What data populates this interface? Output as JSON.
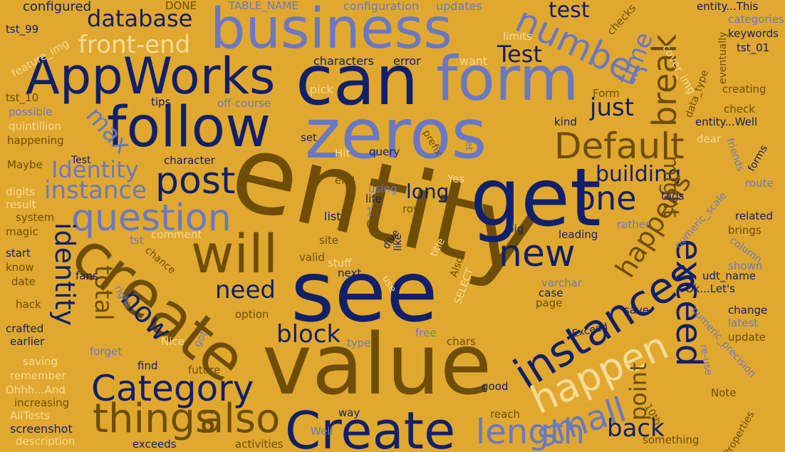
{
  "words": [
    "entity",
    "value",
    "see",
    "zeros",
    "get",
    "can",
    "business",
    "form",
    "follow",
    "AppWorks",
    "create",
    "Create",
    "will",
    "instances",
    "exceed",
    "number",
    "things",
    "also",
    "Category",
    "length",
    "question",
    "happen",
    "Default",
    "break",
    "new",
    "post",
    "identity",
    "small",
    "one",
    "instance",
    "database",
    "front-end",
    "Identity",
    "building",
    "happens",
    "just",
    "now",
    "need",
    "total",
    "block",
    "back",
    "point",
    "max",
    "time",
    "might",
    "Test",
    "test",
    "long",
    "configured",
    "DONE",
    "TABLE_NAME",
    "configuration",
    "updates",
    "checks",
    "entity...This",
    "categories",
    "keywords",
    "tst_99",
    "feature_img",
    "limits",
    "cover_img",
    "tst_01",
    "eventually",
    "characters",
    "error",
    "want",
    "tst_10",
    "pick",
    "creating",
    "tips",
    "off-course",
    "Form",
    "check",
    "possible",
    "data_type",
    "quintillion",
    "kind",
    "entity...Well",
    "happening",
    "set",
    "dear",
    "prefix",
    "friends",
    "character",
    "Hit",
    "query",
    "Let",
    "Maybe",
    "forms",
    "route",
    "Yes",
    "end",
    "digits",
    "using",
    "tags",
    "result",
    "life",
    "list",
    "related",
    "system",
    "row",
    "numeric_scale",
    "magic",
    "comment",
    "site",
    "brings",
    "start",
    "leading",
    "column",
    "valid",
    "chance",
    "dive",
    "like",
    "know",
    "stuff",
    "title",
    "shown",
    "next",
    "date",
    "fans",
    "right",
    "Also",
    "varchar",
    "udt_name",
    "hack",
    "use",
    "case",
    "Ok...Let's",
    "page",
    "option",
    "SELECT",
    "save",
    "change",
    "numeric_precision",
    "crafted",
    "earlier",
    "Nice",
    "chars",
    "Exceed",
    "latest",
    "update",
    "forget",
    "free",
    "type",
    "got",
    "saving",
    "find",
    "remember",
    "future",
    "re-use",
    "Ohhh...And",
    "good",
    "Note",
    "increasing",
    "10th",
    "AllTests",
    "way",
    "reach",
    "screenshot",
    "Well",
    "something",
    "Properties",
    "description",
    "exceeds",
    "activities",
    "rather",
    "big",
    "tst",
    "Test",
    "1",
    "0"
  ],
  "colors": [
    "#11206b",
    "#6a78c4",
    "#6e4e06",
    "#f6dc98"
  ],
  "background": "#e0a82e"
}
